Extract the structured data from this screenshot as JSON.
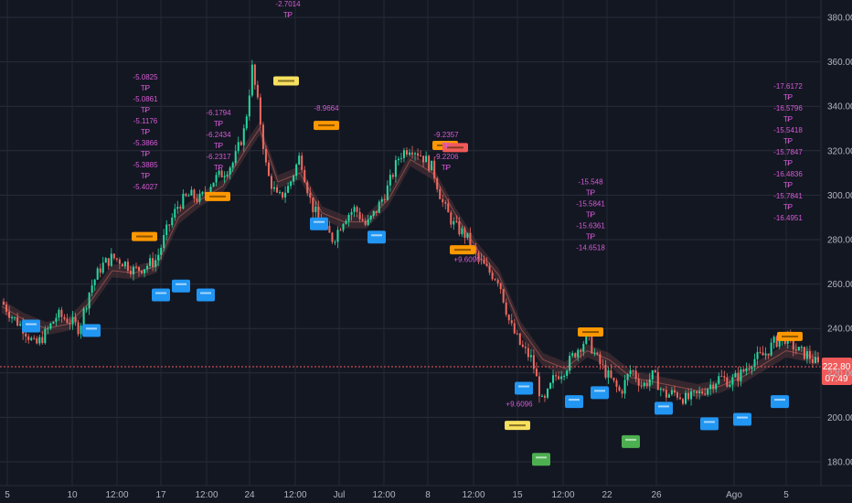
{
  "chart_data": {
    "type": "candlestick",
    "title": "",
    "xlabel": "",
    "ylabel": "",
    "grid": true,
    "ylim": [
      170,
      390
    ],
    "x_ticks": [
      "5",
      "10",
      "12:00",
      "17",
      "12:00",
      "24",
      "12:00",
      "Jul",
      "12:00",
      "8",
      "12:00",
      "15",
      "12:00",
      "22",
      "26",
      "Ago",
      "5"
    ],
    "y_ticks": [
      "180.00",
      "200.00",
      "220.00",
      "240.00",
      "260.00",
      "280.00",
      "300.00",
      "320.00",
      "340.00",
      "360.00",
      "380.00"
    ],
    "y_tick_values": [
      180,
      200,
      220,
      240,
      260,
      280,
      300,
      320,
      340,
      360,
      380
    ],
    "current_price": "222.80",
    "countdown": "07:49",
    "price_path": [
      [
        0,
        252
      ],
      [
        3,
        245
      ],
      [
        6,
        240
      ],
      [
        9,
        232
      ],
      [
        12,
        238
      ],
      [
        15,
        246
      ],
      [
        18,
        244
      ],
      [
        21,
        240
      ],
      [
        24,
        258
      ],
      [
        27,
        268
      ],
      [
        30,
        272
      ],
      [
        33,
        270
      ],
      [
        36,
        266
      ],
      [
        39,
        268
      ],
      [
        42,
        271
      ],
      [
        45,
        285
      ],
      [
        48,
        296
      ],
      [
        51,
        300
      ],
      [
        54,
        298
      ],
      [
        57,
        306
      ],
      [
        60,
        310
      ],
      [
        63,
        315
      ],
      [
        66,
        330
      ],
      [
        68,
        357
      ],
      [
        70,
        336
      ],
      [
        72,
        310
      ],
      [
        75,
        298
      ],
      [
        78,
        304
      ],
      [
        81,
        318
      ],
      [
        84,
        296
      ],
      [
        87,
        286
      ],
      [
        90,
        280
      ],
      [
        93,
        290
      ],
      [
        96,
        294
      ],
      [
        99,
        286
      ],
      [
        102,
        294
      ],
      [
        105,
        304
      ],
      [
        108,
        318
      ],
      [
        111,
        322
      ],
      [
        114,
        318
      ],
      [
        117,
        312
      ],
      [
        120,
        295
      ],
      [
        123,
        286
      ],
      [
        126,
        282
      ],
      [
        129,
        272
      ],
      [
        132,
        266
      ],
      [
        135,
        262
      ],
      [
        138,
        242
      ],
      [
        141,
        232
      ],
      [
        144,
        226
      ],
      [
        147,
        205
      ],
      [
        150,
        218
      ],
      [
        153,
        222
      ],
      [
        156,
        230
      ],
      [
        159,
        236
      ],
      [
        162,
        225
      ],
      [
        165,
        218
      ],
      [
        168,
        211
      ],
      [
        171,
        222
      ],
      [
        174,
        214
      ],
      [
        177,
        219
      ],
      [
        180,
        210
      ],
      [
        183,
        211
      ],
      [
        186,
        208
      ],
      [
        189,
        210
      ],
      [
        192,
        214
      ],
      [
        195,
        218
      ],
      [
        198,
        216
      ],
      [
        201,
        220
      ],
      [
        204,
        226
      ],
      [
        207,
        228
      ],
      [
        210,
        234
      ],
      [
        213,
        236
      ],
      [
        216,
        230
      ],
      [
        219,
        228
      ],
      [
        222,
        223
      ]
    ],
    "indicator_path": [
      [
        0,
        250
      ],
      [
        6,
        244
      ],
      [
        12,
        240
      ],
      [
        18,
        242
      ],
      [
        24,
        252
      ],
      [
        30,
        266
      ],
      [
        36,
        265
      ],
      [
        42,
        268
      ],
      [
        48,
        290
      ],
      [
        54,
        298
      ],
      [
        60,
        304
      ],
      [
        66,
        320
      ],
      [
        70,
        330
      ],
      [
        75,
        306
      ],
      [
        81,
        310
      ],
      [
        87,
        292
      ],
      [
        93,
        288
      ],
      [
        99,
        288
      ],
      [
        105,
        298
      ],
      [
        111,
        316
      ],
      [
        117,
        310
      ],
      [
        123,
        292
      ],
      [
        129,
        276
      ],
      [
        135,
        264
      ],
      [
        141,
        240
      ],
      [
        147,
        226
      ],
      [
        153,
        222
      ],
      [
        159,
        230
      ],
      [
        165,
        226
      ],
      [
        171,
        218
      ],
      [
        177,
        216
      ],
      [
        183,
        214
      ],
      [
        189,
        212
      ],
      [
        195,
        214
      ],
      [
        201,
        218
      ],
      [
        207,
        224
      ],
      [
        213,
        230
      ],
      [
        219,
        228
      ],
      [
        222,
        226
      ]
    ],
    "annotations": {
      "tp_stacks": [
        {
          "t": 38,
          "y": 352,
          "items": [
            "-5.0825",
            "TP",
            "-5.0861",
            "TP",
            "-5.1176",
            "TP",
            "-5.3866",
            "TP",
            "-5.3885",
            "TP",
            "-5.4027"
          ]
        },
        {
          "t": 58,
          "y": 336,
          "items": [
            "-6.1794",
            "TP",
            "-6.2434",
            "TP",
            "-6.2317",
            "TP"
          ]
        },
        {
          "t": 76,
          "y": 385,
          "items": [
            "-2.7014",
            "TP"
          ]
        },
        {
          "t": 87,
          "y": 338,
          "items": [
            "-8.9664"
          ]
        },
        {
          "t": 120,
          "y": 326,
          "items": [
            "-9.2357",
            "TP",
            "-9.2206",
            "TP"
          ]
        },
        {
          "t": 158,
          "y": 305,
          "items": [
            "-15.548",
            "TP",
            "-15.5841",
            "TP",
            "-15.6361",
            "TP",
            "-14.6518"
          ]
        },
        {
          "t": 213,
          "y": 348,
          "items": [
            "-17.6172",
            "TP",
            "-16.5796",
            "TP",
            "-15.5418",
            "TP",
            "-15.7847",
            "TP",
            "-16.4836",
            "TP",
            "-15.7841",
            "TP",
            "-16.4951"
          ]
        }
      ],
      "profit_labels": [
        {
          "t": 142,
          "y": 205,
          "text": "+9.6096"
        },
        {
          "t": 124,
          "y": 270,
          "text": "+9.6096"
        }
      ]
    }
  }
}
